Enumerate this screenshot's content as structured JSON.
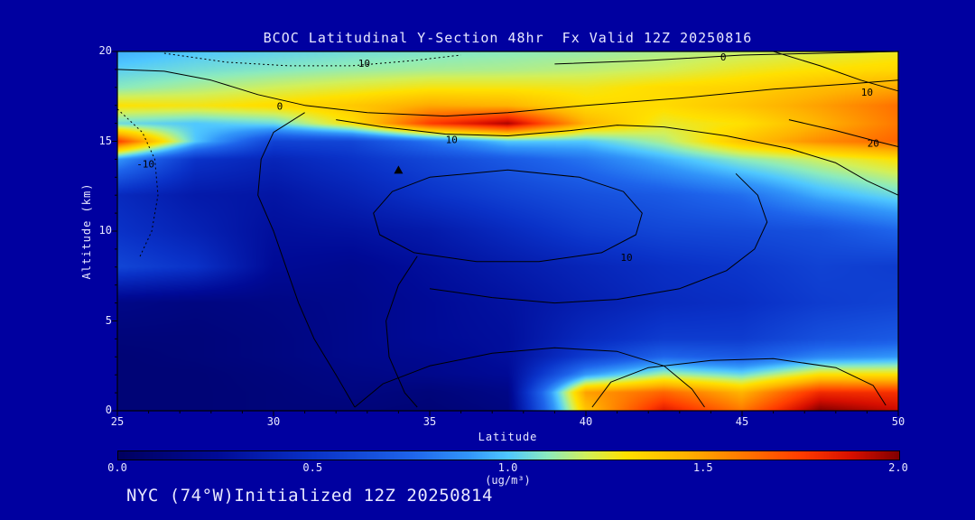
{
  "page": {
    "background": "#0000A0",
    "text_color": "#E8E8FF",
    "frame_color": "#000000"
  },
  "chart_data": {
    "type": "heatmap",
    "title": "BCOC Latitudinal Y-Section 48hr  Fx Valid 12Z 20250816",
    "footer": "NYC (74°W)Initialized 12Z 20250814",
    "xlabel": "Latitude",
    "ylabel": "Altitude (km)",
    "units_label": "(ug/m³)",
    "xlim": [
      25,
      50
    ],
    "ylim": [
      0,
      20
    ],
    "zlim": [
      0,
      2
    ],
    "x_ticks": [
      "25",
      "30",
      "35",
      "40",
      "45",
      "50"
    ],
    "y_ticks": [
      "0",
      "5",
      "10",
      "15",
      "20"
    ],
    "colorbar_ticks": [
      "0.0",
      "0.5",
      "1.0",
      "1.5",
      "2.0"
    ],
    "x": [
      25,
      27.5,
      30,
      32.5,
      35,
      37.5,
      40,
      42.5,
      45,
      47.5,
      50
    ],
    "y": [
      0,
      1,
      2,
      3,
      4,
      6,
      8,
      10,
      12,
      14,
      15,
      16,
      17,
      18,
      19,
      20
    ],
    "values": [
      [
        0.1,
        0.1,
        0.12,
        0.12,
        0.1,
        0.15,
        1.4,
        1.85,
        1.6,
        2.0,
        1.9
      ],
      [
        0.1,
        0.1,
        0.12,
        0.15,
        0.12,
        0.18,
        1.5,
        1.65,
        1.45,
        1.8,
        1.78
      ],
      [
        0.1,
        0.1,
        0.13,
        0.17,
        0.2,
        0.25,
        0.9,
        1.15,
        1.05,
        1.3,
        1.3
      ],
      [
        0.1,
        0.12,
        0.15,
        0.2,
        0.22,
        0.28,
        0.55,
        0.75,
        0.7,
        0.85,
        0.9
      ],
      [
        0.12,
        0.12,
        0.15,
        0.2,
        0.25,
        0.28,
        0.45,
        0.55,
        0.55,
        0.65,
        0.7
      ],
      [
        0.18,
        0.15,
        0.17,
        0.2,
        0.25,
        0.3,
        0.38,
        0.45,
        0.48,
        0.55,
        0.58
      ],
      [
        0.6,
        0.5,
        0.25,
        0.22,
        0.28,
        0.35,
        0.42,
        0.48,
        0.52,
        0.58,
        0.55
      ],
      [
        0.5,
        0.4,
        0.28,
        0.3,
        0.35,
        0.45,
        0.55,
        0.6,
        0.62,
        0.65,
        0.75
      ],
      [
        0.45,
        0.35,
        0.32,
        0.4,
        0.5,
        0.58,
        0.65,
        0.7,
        0.78,
        0.95,
        1.05
      ],
      [
        0.9,
        0.5,
        0.42,
        0.5,
        0.6,
        0.7,
        0.8,
        0.95,
        1.1,
        1.2,
        1.3
      ],
      [
        1.75,
        1.0,
        0.58,
        0.6,
        0.8,
        1.0,
        1.0,
        1.15,
        1.4,
        1.55,
        1.65
      ],
      [
        1.05,
        1.0,
        1.05,
        1.3,
        1.75,
        1.95,
        1.45,
        1.25,
        1.3,
        1.45,
        1.6
      ],
      [
        1.3,
        1.28,
        1.32,
        1.38,
        1.48,
        1.45,
        1.32,
        1.32,
        1.4,
        1.5,
        1.62
      ],
      [
        1.1,
        1.15,
        1.2,
        1.24,
        1.28,
        1.28,
        1.27,
        1.32,
        1.35,
        1.42,
        1.48
      ],
      [
        1.02,
        1.06,
        1.09,
        1.12,
        1.14,
        1.15,
        1.17,
        1.2,
        1.26,
        1.3,
        1.33
      ],
      [
        0.95,
        1.0,
        1.03,
        1.06,
        1.08,
        1.1,
        1.12,
        1.15,
        1.18,
        1.22,
        1.26
      ]
    ],
    "colormap": [
      [
        0.0,
        [
          0,
          0,
          96
        ]
      ],
      [
        0.25,
        [
          0,
          10,
          150
        ]
      ],
      [
        0.5,
        [
          10,
          50,
          200
        ]
      ],
      [
        0.75,
        [
          30,
          100,
          235
        ]
      ],
      [
        0.9,
        [
          50,
          150,
          250
        ]
      ],
      [
        1.0,
        [
          80,
          200,
          255
        ]
      ],
      [
        1.1,
        [
          140,
          235,
          190
        ]
      ],
      [
        1.2,
        [
          210,
          240,
          90
        ]
      ],
      [
        1.3,
        [
          255,
          225,
          0
        ]
      ],
      [
        1.45,
        [
          255,
          180,
          0
        ]
      ],
      [
        1.6,
        [
          255,
          120,
          0
        ]
      ],
      [
        1.75,
        [
          255,
          60,
          0
        ]
      ],
      [
        1.88,
        [
          215,
          15,
          0
        ]
      ],
      [
        2.0,
        [
          130,
          0,
          0
        ]
      ]
    ],
    "contours": [
      {
        "value": "0",
        "dashed": false,
        "points": [
          [
            25,
            19.0
          ],
          [
            26.5,
            18.9
          ],
          [
            28,
            18.4
          ],
          [
            29.5,
            17.6
          ],
          [
            31,
            17.0
          ],
          [
            33,
            16.6
          ],
          [
            35.5,
            16.4
          ],
          [
            37.5,
            16.6
          ],
          [
            40,
            17.0
          ],
          [
            43,
            17.4
          ],
          [
            46,
            17.9
          ],
          [
            48.5,
            18.2
          ],
          [
            50,
            18.4
          ]
        ],
        "label": null,
        "label_pos": null
      },
      {
        "value": "0",
        "dashed": false,
        "points": [
          [
            39,
            19.3
          ],
          [
            42,
            19.5
          ],
          [
            45,
            19.8
          ],
          [
            47.5,
            19.9
          ],
          [
            50,
            20.0
          ]
        ],
        "label": "0",
        "label_pos": [
          44.4,
          19.65
        ]
      },
      {
        "value": "0",
        "dashed": false,
        "points": [
          [
            31,
            16.6
          ],
          [
            30,
            15.5
          ],
          [
            29.6,
            14.0
          ],
          [
            29.5,
            12.0
          ],
          [
            30.0,
            10.0
          ],
          [
            30.4,
            8.0
          ],
          [
            30.8,
            6.0
          ],
          [
            31.3,
            4.0
          ],
          [
            32.0,
            2.0
          ],
          [
            32.6,
            0.2
          ]
        ],
        "label": "0",
        "label_pos": [
          30.2,
          16.9
        ]
      },
      {
        "value": "10",
        "dashed": false,
        "points": [
          [
            32,
            16.2
          ],
          [
            33.5,
            15.8
          ],
          [
            35.5,
            15.4
          ],
          [
            37.5,
            15.3
          ],
          [
            39.5,
            15.6
          ],
          [
            41,
            15.9
          ],
          [
            42.5,
            15.8
          ],
          [
            44.5,
            15.3
          ],
          [
            46.5,
            14.6
          ],
          [
            48,
            13.8
          ],
          [
            49,
            12.8
          ],
          [
            50,
            12.0
          ]
        ],
        "label": "10",
        "label_pos": [
          35.7,
          15.05
        ]
      },
      {
        "value": "10",
        "dashed": true,
        "points": [
          [
            26.5,
            19.9
          ],
          [
            28.5,
            19.4
          ],
          [
            30.5,
            19.2
          ],
          [
            32.5,
            19.2
          ],
          [
            34.5,
            19.5
          ],
          [
            36,
            19.8
          ]
        ],
        "label": "10",
        "label_pos": [
          32.9,
          19.3
        ]
      },
      {
        "value": "-10",
        "dashed": true,
        "points": [
          [
            25,
            16.8
          ],
          [
            25.8,
            15.5
          ],
          [
            26.2,
            14.0
          ],
          [
            26.3,
            12.0
          ],
          [
            26.1,
            10.0
          ],
          [
            25.7,
            8.5
          ]
        ],
        "label": "-10",
        "label_pos": [
          25.9,
          13.7
        ]
      },
      {
        "value": "10",
        "dashed": false,
        "points": [
          [
            35,
            13.0
          ],
          [
            33.8,
            12.2
          ],
          [
            33.2,
            11.0
          ],
          [
            33.4,
            9.8
          ],
          [
            34.5,
            8.8
          ],
          [
            36.5,
            8.3
          ],
          [
            38.5,
            8.3
          ],
          [
            40.5,
            8.8
          ],
          [
            41.6,
            9.8
          ],
          [
            41.8,
            11.0
          ],
          [
            41.2,
            12.2
          ],
          [
            39.8,
            13.0
          ],
          [
            37.5,
            13.4
          ],
          [
            35,
            13.0
          ]
        ],
        "label": "10",
        "label_pos": [
          41.3,
          8.5
        ]
      },
      {
        "value": "10",
        "dashed": false,
        "points": [
          [
            46,
            20.0
          ],
          [
            47.5,
            19.2
          ],
          [
            48.8,
            18.4
          ],
          [
            50,
            17.8
          ]
        ],
        "label": "10",
        "label_pos": [
          49.0,
          17.7
        ]
      },
      {
        "value": "20",
        "dashed": false,
        "points": [
          [
            46.5,
            16.2
          ],
          [
            48,
            15.6
          ],
          [
            49.3,
            15.0
          ],
          [
            50,
            14.7
          ]
        ],
        "label": "20",
        "label_pos": [
          49.2,
          14.85
        ]
      },
      {
        "value": "0",
        "dashed": false,
        "points": [
          [
            32.6,
            0.2
          ],
          [
            33.5,
            1.5
          ],
          [
            35,
            2.5
          ],
          [
            37,
            3.2
          ],
          [
            39,
            3.5
          ],
          [
            41,
            3.3
          ],
          [
            42.5,
            2.5
          ],
          [
            43.4,
            1.2
          ],
          [
            43.8,
            0.2
          ]
        ],
        "label": null,
        "label_pos": null
      },
      {
        "value": "10",
        "dashed": false,
        "points": [
          [
            40.2,
            0.2
          ],
          [
            40.8,
            1.6
          ],
          [
            42,
            2.4
          ],
          [
            44,
            2.8
          ],
          [
            46,
            2.9
          ],
          [
            48,
            2.4
          ],
          [
            49.2,
            1.4
          ],
          [
            49.6,
            0.3
          ]
        ],
        "label": null,
        "label_pos": null
      },
      {
        "value": "0",
        "dashed": false,
        "points": [
          [
            34.6,
            8.6
          ],
          [
            34.0,
            7.0
          ],
          [
            33.6,
            5.0
          ],
          [
            33.7,
            3.0
          ],
          [
            34.2,
            1.0
          ],
          [
            34.6,
            0.2
          ]
        ],
        "label": null,
        "label_pos": null
      },
      {
        "value": "10",
        "dashed": false,
        "points": [
          [
            35,
            6.8
          ],
          [
            37,
            6.3
          ],
          [
            39,
            6.0
          ],
          [
            41,
            6.2
          ],
          [
            43,
            6.8
          ],
          [
            44.5,
            7.8
          ],
          [
            45.4,
            9.0
          ],
          [
            45.8,
            10.5
          ],
          [
            45.5,
            12.0
          ],
          [
            44.8,
            13.2
          ]
        ],
        "label": null,
        "label_pos": null
      }
    ],
    "marker": {
      "lat": 34,
      "alt": 13.4
    }
  }
}
